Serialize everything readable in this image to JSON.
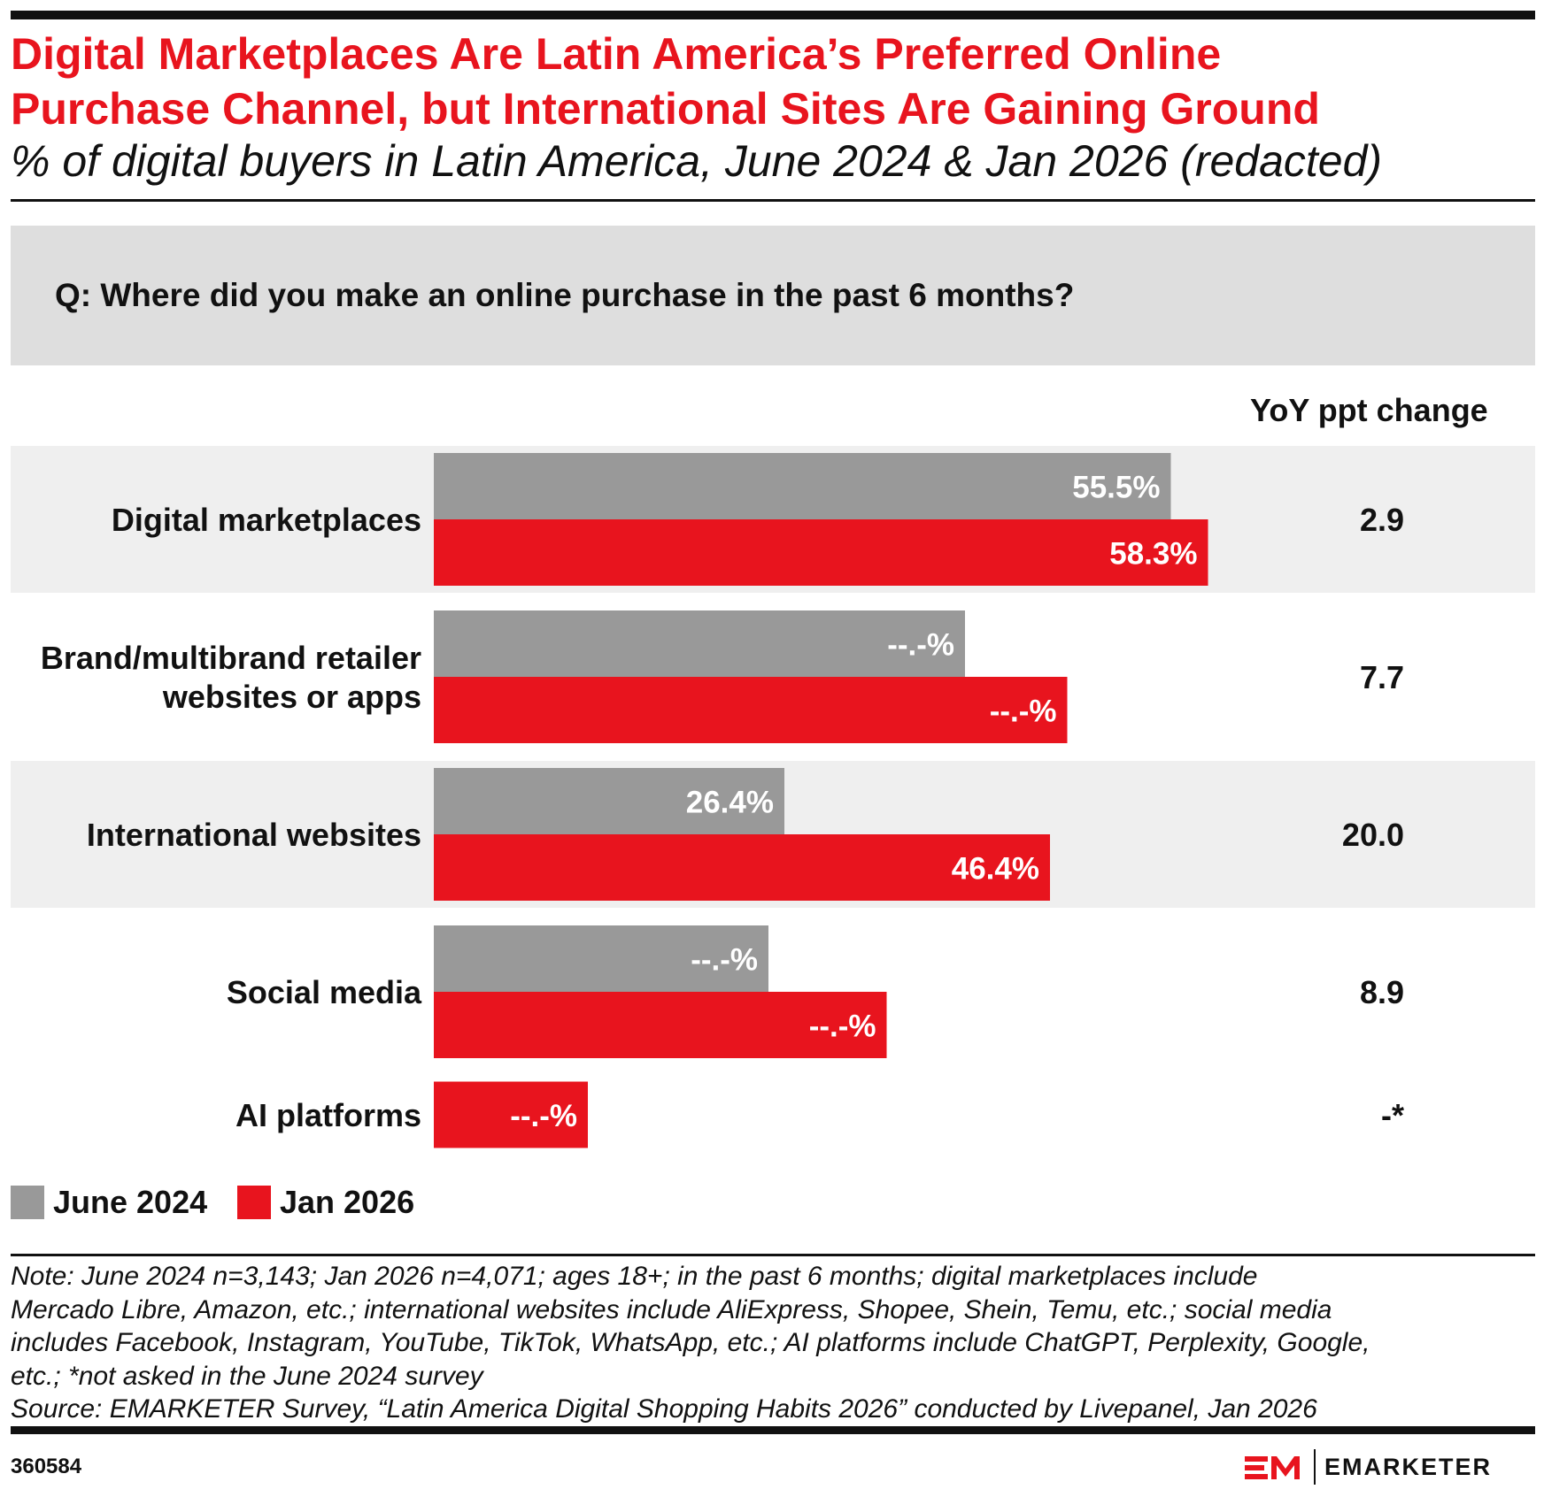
{
  "header": {
    "title_line1": "Digital Marketplaces Are Latin America’s Preferred Online",
    "title_line2": "Purchase Channel, but International Sites Are Gaining Ground",
    "subtitle": "% of digital buyers in Latin America, June 2024 & Jan 2026 (redacted)"
  },
  "question": "Q: Where did you make an online purchase in the past 6 months?",
  "colors": {
    "accent": "#e8141e",
    "gray_bar": "#999999",
    "band": "#efefef",
    "question_box": "#dedede"
  },
  "chart_data": {
    "type": "bar",
    "orientation": "horizontal",
    "xlim": [
      0,
      100
    ],
    "yoy_header": "YoY ppt change",
    "categories": [
      {
        "label_lines": [
          "Digital marketplaces"
        ],
        "yoy": "2.9",
        "shaded": true
      },
      {
        "label_lines": [
          "Brand/multibrand retailer",
          "websites or apps"
        ],
        "yoy": "7.7",
        "shaded": false
      },
      {
        "label_lines": [
          "International websites"
        ],
        "yoy": "20.0",
        "shaded": true
      },
      {
        "label_lines": [
          "Social media"
        ],
        "yoy": "8.9",
        "shaded": false
      },
      {
        "label_lines": [
          "AI platforms"
        ],
        "yoy": "-*",
        "shaded": false
      }
    ],
    "series": [
      {
        "name": "June 2024",
        "color": "#999999",
        "values": [
          55.5,
          40.0,
          26.4,
          25.2,
          null
        ],
        "labels": [
          "55.5%",
          "--.-%",
          "26.4%",
          "--.-%",
          null
        ]
      },
      {
        "name": "Jan 2026",
        "color": "#e8141e",
        "values": [
          58.3,
          47.7,
          46.4,
          34.1,
          11.6
        ],
        "labels": [
          "58.3%",
          "--.-%",
          "46.4%",
          "--.-%",
          "--.-%"
        ]
      }
    ]
  },
  "legend": [
    {
      "label": "June 2024",
      "color": "#999999"
    },
    {
      "label": "Jan 2026",
      "color": "#e8141e"
    }
  ],
  "note": {
    "line1": "Note: June 2024 n=3,143; Jan 2026 n=4,071; ages 18+; in the past 6 months; digital marketplaces include",
    "line2": "Mercado Libre, Amazon, etc.; international websites include AliExpress, Shopee, Shein, Temu, etc.; social media",
    "line3": "includes Facebook, Instagram, YouTube, TikTok, WhatsApp, etc.; AI platforms include ChatGPT, Perplexity, Google,",
    "line4": "etc.; *not asked in the June 2024 survey",
    "source": "Source: EMARKETER Survey, “Latin America Digital Shopping Habits 2026” conducted by Livepanel, Jan 2026"
  },
  "footer": {
    "chart_id": "360584",
    "brand": "EMARKETER"
  }
}
